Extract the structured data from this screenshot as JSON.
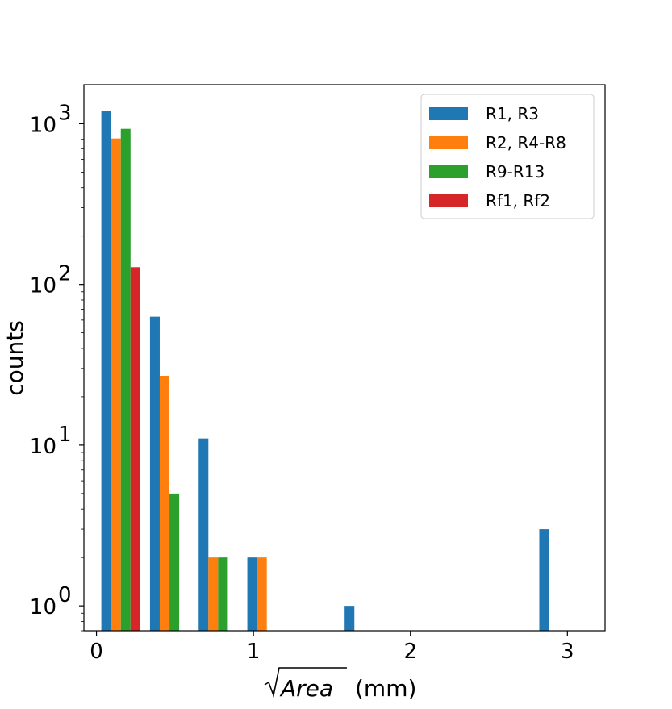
{
  "chart_data": {
    "type": "bar",
    "bin_centers": [
      0.155,
      0.465,
      0.775,
      1.085,
      1.395,
      1.705,
      2.015,
      2.325,
      2.635,
      2.945
    ],
    "series": [
      {
        "name": "R1, R3",
        "color": "#1f77b4",
        "values": [
          1200,
          63,
          11,
          2,
          0,
          1,
          0,
          0,
          0,
          3
        ]
      },
      {
        "name": "R2, R4-R8",
        "color": "#ff7f0e",
        "values": [
          810,
          27,
          2,
          2,
          0,
          0,
          0,
          0,
          0,
          0
        ]
      },
      {
        "name": "R9-R13",
        "color": "#2ca02c",
        "values": [
          930,
          5,
          2,
          0,
          0,
          0,
          0,
          0,
          0,
          0
        ]
      },
      {
        "name": "Rf1, Rf2",
        "color": "#d62728",
        "values": [
          128,
          0,
          0,
          0,
          0,
          0,
          0,
          0,
          0,
          0
        ]
      }
    ],
    "xlabel_radicand": "Area",
    "xlabel_unit": "(mm)",
    "ylabel": "counts",
    "xlim": [
      -0.08,
      3.24
    ],
    "ylim": [
      0.7,
      1750
    ],
    "yscale": "log",
    "xticks": [
      0,
      1,
      2,
      3
    ],
    "yticks": [
      1,
      10,
      100,
      1000
    ],
    "ytick_base": "10",
    "ytick_exponents": [
      "0",
      "1",
      "2",
      "3"
    ],
    "legend_position": "top-right",
    "grid": false
  }
}
